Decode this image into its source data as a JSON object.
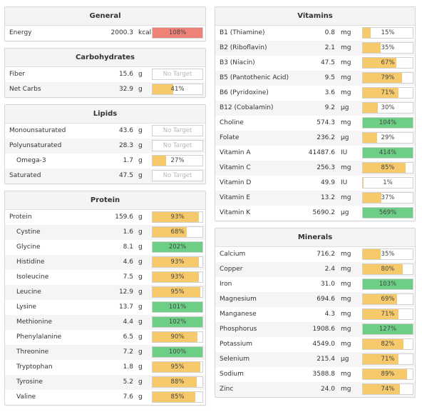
{
  "colors": {
    "fill_yellow": "#f6c96a",
    "fill_green": "#6dcf86",
    "fill_red": "#ef8277"
  },
  "left_panels": [
    {
      "title": "General",
      "rows": [
        {
          "label": "Energy",
          "value": "2000.3",
          "unit": "kcal",
          "pct": "108%",
          "level": 1.0,
          "color": "red"
        }
      ]
    },
    {
      "title": "Carbohydrates",
      "rows": [
        {
          "label": "Fiber",
          "value": "15.6",
          "unit": "g",
          "pct": "No Target",
          "level": 0,
          "color": "none"
        },
        {
          "label": "Net Carbs",
          "value": "32.9",
          "unit": "g",
          "pct": "41%",
          "level": 0.41,
          "color": "yellow"
        }
      ]
    },
    {
      "title": "Lipids",
      "rows": [
        {
          "label": "Monounsaturated",
          "value": "43.6",
          "unit": "g",
          "pct": "No Target",
          "level": 0,
          "color": "none"
        },
        {
          "label": "Polyunsaturated",
          "value": "28.3",
          "unit": "g",
          "pct": "No Target",
          "level": 0,
          "color": "none"
        },
        {
          "label": "Omega-3",
          "value": "1.7",
          "unit": "g",
          "pct": "27%",
          "level": 0.27,
          "color": "yellow",
          "indent": true
        },
        {
          "label": "Saturated",
          "value": "47.5",
          "unit": "g",
          "pct": "No Target",
          "level": 0,
          "color": "none"
        }
      ]
    },
    {
      "title": "Protein",
      "rows": [
        {
          "label": "Protein",
          "value": "159.6",
          "unit": "g",
          "pct": "93%",
          "level": 0.93,
          "color": "yellow"
        },
        {
          "label": "Cystine",
          "value": "1.6",
          "unit": "g",
          "pct": "68%",
          "level": 0.68,
          "color": "yellow",
          "indent": true
        },
        {
          "label": "Glycine",
          "value": "8.1",
          "unit": "g",
          "pct": "202%",
          "level": 1.0,
          "color": "green",
          "indent": true
        },
        {
          "label": "Histidine",
          "value": "4.6",
          "unit": "g",
          "pct": "93%",
          "level": 0.93,
          "color": "yellow",
          "indent": true
        },
        {
          "label": "Isoleucine",
          "value": "7.5",
          "unit": "g",
          "pct": "93%",
          "level": 0.93,
          "color": "yellow",
          "indent": true
        },
        {
          "label": "Leucine",
          "value": "12.9",
          "unit": "g",
          "pct": "95%",
          "level": 0.95,
          "color": "yellow",
          "indent": true
        },
        {
          "label": "Lysine",
          "value": "13.7",
          "unit": "g",
          "pct": "101%",
          "level": 1.0,
          "color": "green",
          "indent": true
        },
        {
          "label": "Methionine",
          "value": "4.4",
          "unit": "g",
          "pct": "102%",
          "level": 1.0,
          "color": "green",
          "indent": true
        },
        {
          "label": "Phenylalanine",
          "value": "6.5",
          "unit": "g",
          "pct": "90%",
          "level": 0.9,
          "color": "yellow",
          "indent": true
        },
        {
          "label": "Threonine",
          "value": "7.2",
          "unit": "g",
          "pct": "100%",
          "level": 1.0,
          "color": "green",
          "indent": true
        },
        {
          "label": "Tryptophan",
          "value": "1.8",
          "unit": "g",
          "pct": "95%",
          "level": 0.95,
          "color": "yellow",
          "indent": true
        },
        {
          "label": "Tyrosine",
          "value": "5.2",
          "unit": "g",
          "pct": "88%",
          "level": 0.88,
          "color": "yellow",
          "indent": true
        },
        {
          "label": "Valine",
          "value": "7.6",
          "unit": "g",
          "pct": "85%",
          "level": 0.85,
          "color": "yellow",
          "indent": true
        }
      ]
    }
  ],
  "right_panels": [
    {
      "title": "Vitamins",
      "rows": [
        {
          "label": "B1 (Thiamine)",
          "value": "0.8",
          "unit": "mg",
          "pct": "15%",
          "level": 0.15,
          "color": "yellow"
        },
        {
          "label": "B2 (Riboflavin)",
          "value": "2.1",
          "unit": "mg",
          "pct": "35%",
          "level": 0.35,
          "color": "yellow"
        },
        {
          "label": "B3 (Niacin)",
          "value": "47.5",
          "unit": "mg",
          "pct": "67%",
          "level": 0.67,
          "color": "yellow"
        },
        {
          "label": "B5 (Pantothenic Acid)",
          "value": "9.5",
          "unit": "mg",
          "pct": "79%",
          "level": 0.79,
          "color": "yellow"
        },
        {
          "label": "B6 (Pyridoxine)",
          "value": "3.6",
          "unit": "mg",
          "pct": "71%",
          "level": 0.71,
          "color": "yellow"
        },
        {
          "label": "B12 (Cobalamin)",
          "value": "9.2",
          "unit": "µg",
          "pct": "30%",
          "level": 0.3,
          "color": "yellow"
        },
        {
          "label": "Choline",
          "value": "574.3",
          "unit": "mg",
          "pct": "104%",
          "level": 1.0,
          "color": "green"
        },
        {
          "label": "Folate",
          "value": "236.2",
          "unit": "µg",
          "pct": "29%",
          "level": 0.29,
          "color": "yellow"
        },
        {
          "label": "Vitamin A",
          "value": "41487.6",
          "unit": "IU",
          "pct": "414%",
          "level": 1.0,
          "color": "green"
        },
        {
          "label": "Vitamin C",
          "value": "256.3",
          "unit": "mg",
          "pct": "85%",
          "level": 0.85,
          "color": "yellow"
        },
        {
          "label": "Vitamin D",
          "value": "49.9",
          "unit": "IU",
          "pct": "1%",
          "level": 0.01,
          "color": "yellow"
        },
        {
          "label": "Vitamin E",
          "value": "13.2",
          "unit": "mg",
          "pct": "37%",
          "level": 0.37,
          "color": "yellow"
        },
        {
          "label": "Vitamin K",
          "value": "5690.2",
          "unit": "µg",
          "pct": "569%",
          "level": 1.0,
          "color": "green"
        }
      ]
    },
    {
      "title": "Minerals",
      "rows": [
        {
          "label": "Calcium",
          "value": "716.2",
          "unit": "mg",
          "pct": "35%",
          "level": 0.35,
          "color": "yellow"
        },
        {
          "label": "Copper",
          "value": "2.4",
          "unit": "mg",
          "pct": "80%",
          "level": 0.8,
          "color": "yellow"
        },
        {
          "label": "Iron",
          "value": "31.0",
          "unit": "mg",
          "pct": "103%",
          "level": 1.0,
          "color": "green"
        },
        {
          "label": "Magnesium",
          "value": "694.6",
          "unit": "mg",
          "pct": "69%",
          "level": 0.69,
          "color": "yellow"
        },
        {
          "label": "Manganese",
          "value": "4.3",
          "unit": "mg",
          "pct": "71%",
          "level": 0.71,
          "color": "yellow"
        },
        {
          "label": "Phosphorus",
          "value": "1908.6",
          "unit": "mg",
          "pct": "127%",
          "level": 1.0,
          "color": "green"
        },
        {
          "label": "Potassium",
          "value": "4549.0",
          "unit": "mg",
          "pct": "82%",
          "level": 0.82,
          "color": "yellow"
        },
        {
          "label": "Selenium",
          "value": "215.4",
          "unit": "µg",
          "pct": "71%",
          "level": 0.71,
          "color": "yellow"
        },
        {
          "label": "Sodium",
          "value": "3588.8",
          "unit": "mg",
          "pct": "89%",
          "level": 0.89,
          "color": "yellow"
        },
        {
          "label": "Zinc",
          "value": "24.0",
          "unit": "mg",
          "pct": "74%",
          "level": 0.74,
          "color": "yellow"
        }
      ]
    }
  ]
}
